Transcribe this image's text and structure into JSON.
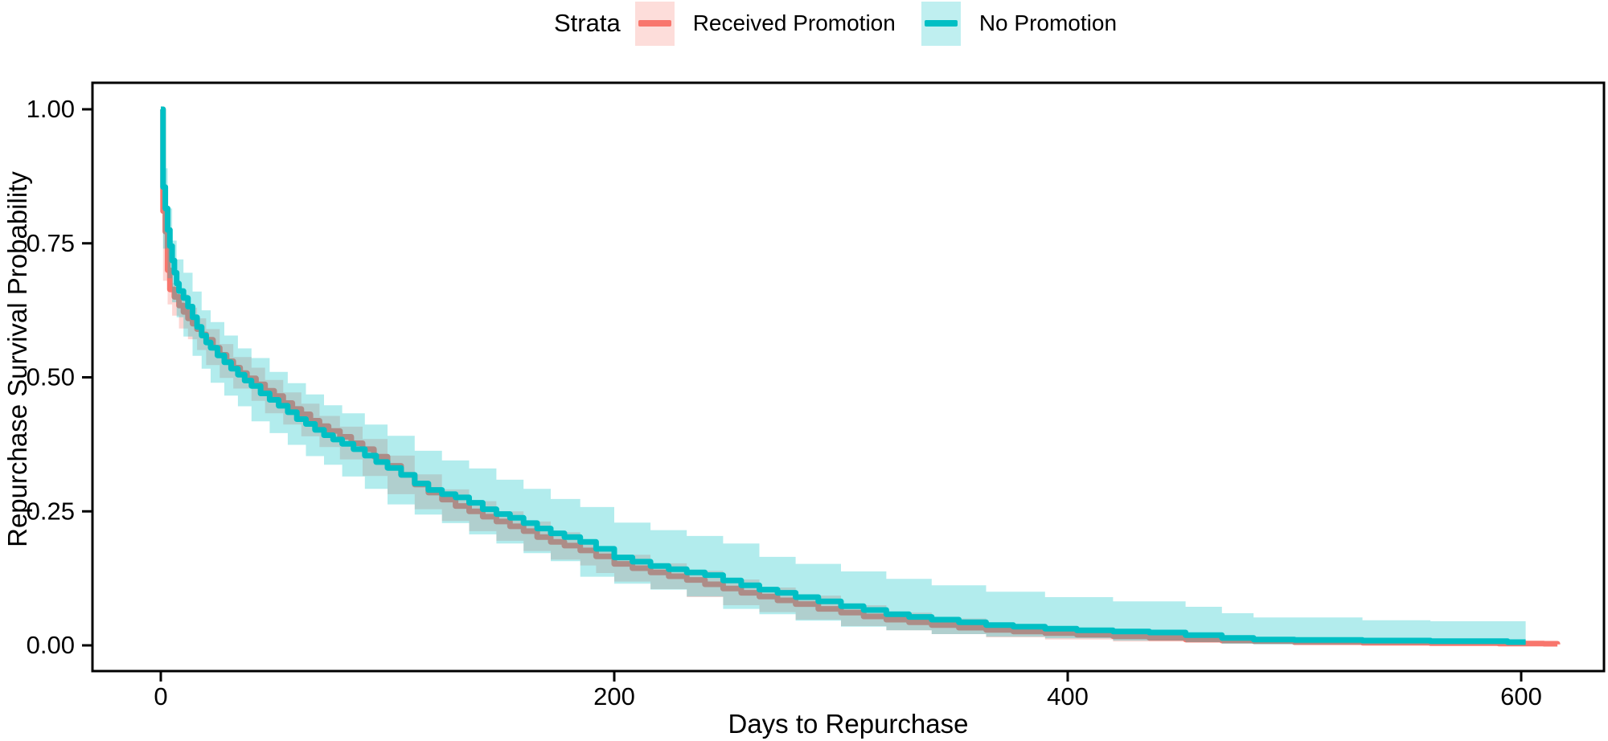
{
  "legend": {
    "title": "Strata",
    "items": [
      {
        "label": "Received Promotion",
        "color": "#F8766D",
        "key_fill": "rgba(248,118,109,0.25)"
      },
      {
        "label": "No Promotion",
        "color": "#00BFC4",
        "key_fill": "rgba(0,191,196,0.25)"
      }
    ]
  },
  "chart_data": {
    "type": "line",
    "subtype": "kaplan-meier-step-with-confidence-bands",
    "title": "",
    "xlabel": "Days to Repurchase",
    "ylabel": "Repurchase Survival Probability",
    "grid": false,
    "legend_position": "top-center",
    "xlim": [
      -30,
      636
    ],
    "ylim": [
      -0.048,
      1.098
    ],
    "xticks": [
      {
        "value": 0,
        "label": "0"
      },
      {
        "value": 200,
        "label": "200"
      },
      {
        "value": 400,
        "label": "400"
      },
      {
        "value": 600,
        "label": "600"
      }
    ],
    "yticks": [
      {
        "value": 0,
        "label": "0.00"
      },
      {
        "value": 0.25,
        "label": "0.25"
      },
      {
        "value": 0.5,
        "label": "0.50"
      },
      {
        "value": 0.75,
        "label": "0.75"
      },
      {
        "value": 1,
        "label": "1.00"
      }
    ],
    "series": [
      {
        "name": "Received Promotion",
        "color": "#F8766D",
        "band_fill": "rgba(248,118,109,0.3)",
        "points": [
          [
            0,
            1.0
          ],
          [
            1,
            0.81
          ],
          [
            2,
            0.772
          ],
          [
            3,
            0.7
          ],
          [
            4,
            0.664
          ],
          [
            6,
            0.65
          ],
          [
            8,
            0.634
          ],
          [
            10,
            0.622
          ],
          [
            12,
            0.61
          ],
          [
            14,
            0.6
          ],
          [
            16,
            0.59
          ],
          [
            18,
            0.58
          ],
          [
            20,
            0.57
          ],
          [
            23,
            0.555
          ],
          [
            26,
            0.542
          ],
          [
            29,
            0.53
          ],
          [
            32,
            0.518
          ],
          [
            35,
            0.508
          ],
          [
            38,
            0.498
          ],
          [
            42,
            0.487
          ],
          [
            46,
            0.475
          ],
          [
            50,
            0.465
          ],
          [
            54,
            0.452
          ],
          [
            58,
            0.441
          ],
          [
            62,
            0.431
          ],
          [
            66,
            0.419
          ],
          [
            70,
            0.409
          ],
          [
            74,
            0.4
          ],
          [
            79,
            0.389
          ],
          [
            84,
            0.377
          ],
          [
            89,
            0.366
          ],
          [
            94,
            0.352
          ],
          [
            100,
            0.335
          ],
          [
            106,
            0.318
          ],
          [
            112,
            0.3
          ],
          [
            118,
            0.285
          ],
          [
            124,
            0.272
          ],
          [
            130,
            0.26
          ],
          [
            136,
            0.25
          ],
          [
            142,
            0.24
          ],
          [
            148,
            0.231
          ],
          [
            154,
            0.222
          ],
          [
            160,
            0.213
          ],
          [
            166,
            0.202
          ],
          [
            172,
            0.193
          ],
          [
            178,
            0.186
          ],
          [
            185,
            0.177
          ],
          [
            192,
            0.166
          ],
          [
            200,
            0.152
          ],
          [
            208,
            0.144
          ],
          [
            216,
            0.136
          ],
          [
            224,
            0.129
          ],
          [
            232,
            0.122
          ],
          [
            240,
            0.114
          ],
          [
            248,
            0.106
          ],
          [
            256,
            0.098
          ],
          [
            264,
            0.091
          ],
          [
            272,
            0.084
          ],
          [
            280,
            0.077
          ],
          [
            290,
            0.068
          ],
          [
            300,
            0.061
          ],
          [
            310,
            0.054
          ],
          [
            320,
            0.048
          ],
          [
            330,
            0.043
          ],
          [
            340,
            0.038
          ],
          [
            352,
            0.033
          ],
          [
            364,
            0.029
          ],
          [
            376,
            0.026
          ],
          [
            390,
            0.023
          ],
          [
            404,
            0.02
          ],
          [
            420,
            0.017
          ],
          [
            436,
            0.014
          ],
          [
            452,
            0.011
          ],
          [
            468,
            0.009
          ],
          [
            482,
            0.008
          ],
          [
            500,
            0.006
          ],
          [
            530,
            0.005
          ],
          [
            560,
            0.004
          ],
          [
            590,
            0.0035
          ],
          [
            610,
            0.003
          ],
          [
            616,
            0.002
          ]
        ],
        "band": [
          [
            1,
            0.79,
            0.835
          ],
          [
            3,
            0.68,
            0.722
          ],
          [
            5,
            0.636,
            0.676
          ],
          [
            8,
            0.615,
            0.655
          ],
          [
            12,
            0.591,
            0.63
          ],
          [
            16,
            0.571,
            0.61
          ],
          [
            20,
            0.551,
            0.59
          ],
          [
            26,
            0.523,
            0.562
          ],
          [
            32,
            0.499,
            0.538
          ],
          [
            40,
            0.479,
            0.518
          ],
          [
            46,
            0.456,
            0.495
          ],
          [
            54,
            0.433,
            0.472
          ],
          [
            62,
            0.412,
            0.451
          ],
          [
            70,
            0.39,
            0.428
          ],
          [
            79,
            0.37,
            0.408
          ],
          [
            89,
            0.347,
            0.385
          ],
          [
            100,
            0.316,
            0.354
          ],
          [
            112,
            0.282,
            0.319
          ],
          [
            124,
            0.254,
            0.291
          ],
          [
            136,
            0.232,
            0.269
          ],
          [
            148,
            0.213,
            0.25
          ],
          [
            160,
            0.195,
            0.231
          ],
          [
            172,
            0.176,
            0.211
          ],
          [
            185,
            0.16,
            0.194
          ],
          [
            192,
            0.149,
            0.183
          ],
          [
            200,
            0.135,
            0.169
          ],
          [
            216,
            0.119,
            0.153
          ],
          [
            232,
            0.105,
            0.139
          ],
          [
            248,
            0.09,
            0.123
          ],
          [
            264,
            0.075,
            0.108
          ],
          [
            280,
            0.062,
            0.093
          ],
          [
            300,
            0.048,
            0.075
          ],
          [
            320,
            0.036,
            0.061
          ],
          [
            340,
            0.028,
            0.05
          ],
          [
            364,
            0.021,
            0.039
          ],
          [
            390,
            0.015,
            0.031
          ],
          [
            420,
            0.011,
            0.024
          ],
          [
            452,
            0.007,
            0.016
          ],
          [
            482,
            0.005,
            0.012
          ],
          [
            530,
            0.003,
            0.008
          ],
          [
            560,
            0.002,
            0.006
          ],
          [
            590,
            0.0015,
            0.005
          ],
          [
            616,
            0.001,
            0.004
          ]
        ]
      },
      {
        "name": "No Promotion",
        "color": "#00BFC4",
        "band_fill": "rgba(0,191,196,0.3)",
        "points": [
          [
            0,
            1.0
          ],
          [
            1,
            0.855
          ],
          [
            2,
            0.815
          ],
          [
            3,
            0.775
          ],
          [
            4,
            0.745
          ],
          [
            5,
            0.718
          ],
          [
            6,
            0.695
          ],
          [
            7,
            0.675
          ],
          [
            8,
            0.661
          ],
          [
            10,
            0.648
          ],
          [
            12,
            0.632
          ],
          [
            14,
            0.612
          ],
          [
            16,
            0.594
          ],
          [
            18,
            0.578
          ],
          [
            20,
            0.565
          ],
          [
            22,
            0.555
          ],
          [
            25,
            0.541
          ],
          [
            28,
            0.528
          ],
          [
            31,
            0.516
          ],
          [
            34,
            0.505
          ],
          [
            37,
            0.494
          ],
          [
            40,
            0.484
          ],
          [
            44,
            0.47
          ],
          [
            48,
            0.458
          ],
          [
            52,
            0.447
          ],
          [
            56,
            0.435
          ],
          [
            60,
            0.422
          ],
          [
            64,
            0.413
          ],
          [
            68,
            0.402
          ],
          [
            72,
            0.392
          ],
          [
            76,
            0.384
          ],
          [
            80,
            0.376
          ],
          [
            85,
            0.366
          ],
          [
            90,
            0.354
          ],
          [
            95,
            0.342
          ],
          [
            100,
            0.331
          ],
          [
            106,
            0.318
          ],
          [
            112,
            0.302
          ],
          [
            118,
            0.29
          ],
          [
            124,
            0.282
          ],
          [
            130,
            0.276
          ],
          [
            136,
            0.266
          ],
          [
            142,
            0.254
          ],
          [
            148,
            0.245
          ],
          [
            154,
            0.238
          ],
          [
            160,
            0.228
          ],
          [
            166,
            0.218
          ],
          [
            172,
            0.209
          ],
          [
            178,
            0.202
          ],
          [
            185,
            0.193
          ],
          [
            192,
            0.18
          ],
          [
            200,
            0.164
          ],
          [
            208,
            0.156
          ],
          [
            216,
            0.148
          ],
          [
            224,
            0.142
          ],
          [
            232,
            0.136
          ],
          [
            240,
            0.131
          ],
          [
            248,
            0.121
          ],
          [
            256,
            0.112
          ],
          [
            264,
            0.104
          ],
          [
            272,
            0.098
          ],
          [
            280,
            0.09
          ],
          [
            290,
            0.082
          ],
          [
            300,
            0.073
          ],
          [
            310,
            0.066
          ],
          [
            320,
            0.058
          ],
          [
            330,
            0.053
          ],
          [
            340,
            0.048
          ],
          [
            352,
            0.043
          ],
          [
            364,
            0.038
          ],
          [
            376,
            0.035
          ],
          [
            390,
            0.031
          ],
          [
            404,
            0.028
          ],
          [
            420,
            0.026
          ],
          [
            436,
            0.024
          ],
          [
            452,
            0.019
          ],
          [
            468,
            0.014
          ],
          [
            482,
            0.011
          ],
          [
            500,
            0.01
          ],
          [
            530,
            0.009
          ],
          [
            560,
            0.008
          ],
          [
            594,
            0.006
          ],
          [
            602,
            0.006
          ]
        ],
        "band": [
          [
            1,
            0.82,
            0.89
          ],
          [
            3,
            0.74,
            0.815
          ],
          [
            5,
            0.685,
            0.755
          ],
          [
            7,
            0.64,
            0.72
          ],
          [
            10,
            0.612,
            0.695
          ],
          [
            14,
            0.576,
            0.66
          ],
          [
            18,
            0.54,
            0.625
          ],
          [
            22,
            0.516,
            0.603
          ],
          [
            28,
            0.49,
            0.578
          ],
          [
            34,
            0.466,
            0.554
          ],
          [
            40,
            0.446,
            0.536
          ],
          [
            48,
            0.418,
            0.51
          ],
          [
            56,
            0.396,
            0.489
          ],
          [
            64,
            0.374,
            0.468
          ],
          [
            72,
            0.353,
            0.448
          ],
          [
            80,
            0.337,
            0.433
          ],
          [
            90,
            0.315,
            0.412
          ],
          [
            100,
            0.292,
            0.391
          ],
          [
            112,
            0.263,
            0.363
          ],
          [
            124,
            0.244,
            0.345
          ],
          [
            136,
            0.228,
            0.33
          ],
          [
            148,
            0.207,
            0.309
          ],
          [
            160,
            0.19,
            0.292
          ],
          [
            172,
            0.172,
            0.273
          ],
          [
            185,
            0.157,
            0.258
          ],
          [
            200,
            0.128,
            0.229
          ],
          [
            216,
            0.115,
            0.215
          ],
          [
            232,
            0.104,
            0.204
          ],
          [
            248,
            0.091,
            0.19
          ],
          [
            264,
            0.068,
            0.165
          ],
          [
            280,
            0.058,
            0.152
          ],
          [
            300,
            0.046,
            0.138
          ],
          [
            320,
            0.035,
            0.124
          ],
          [
            340,
            0.028,
            0.112
          ],
          [
            364,
            0.021,
            0.1
          ],
          [
            390,
            0.016,
            0.09
          ],
          [
            420,
            0.013,
            0.082
          ],
          [
            452,
            0.009,
            0.072
          ],
          [
            468,
            0.006,
            0.06
          ],
          [
            482,
            0.003,
            0.052
          ],
          [
            530,
            0.002,
            0.047
          ],
          [
            560,
            0.002,
            0.045
          ],
          [
            602,
            0.002,
            0.044
          ]
        ]
      }
    ]
  }
}
